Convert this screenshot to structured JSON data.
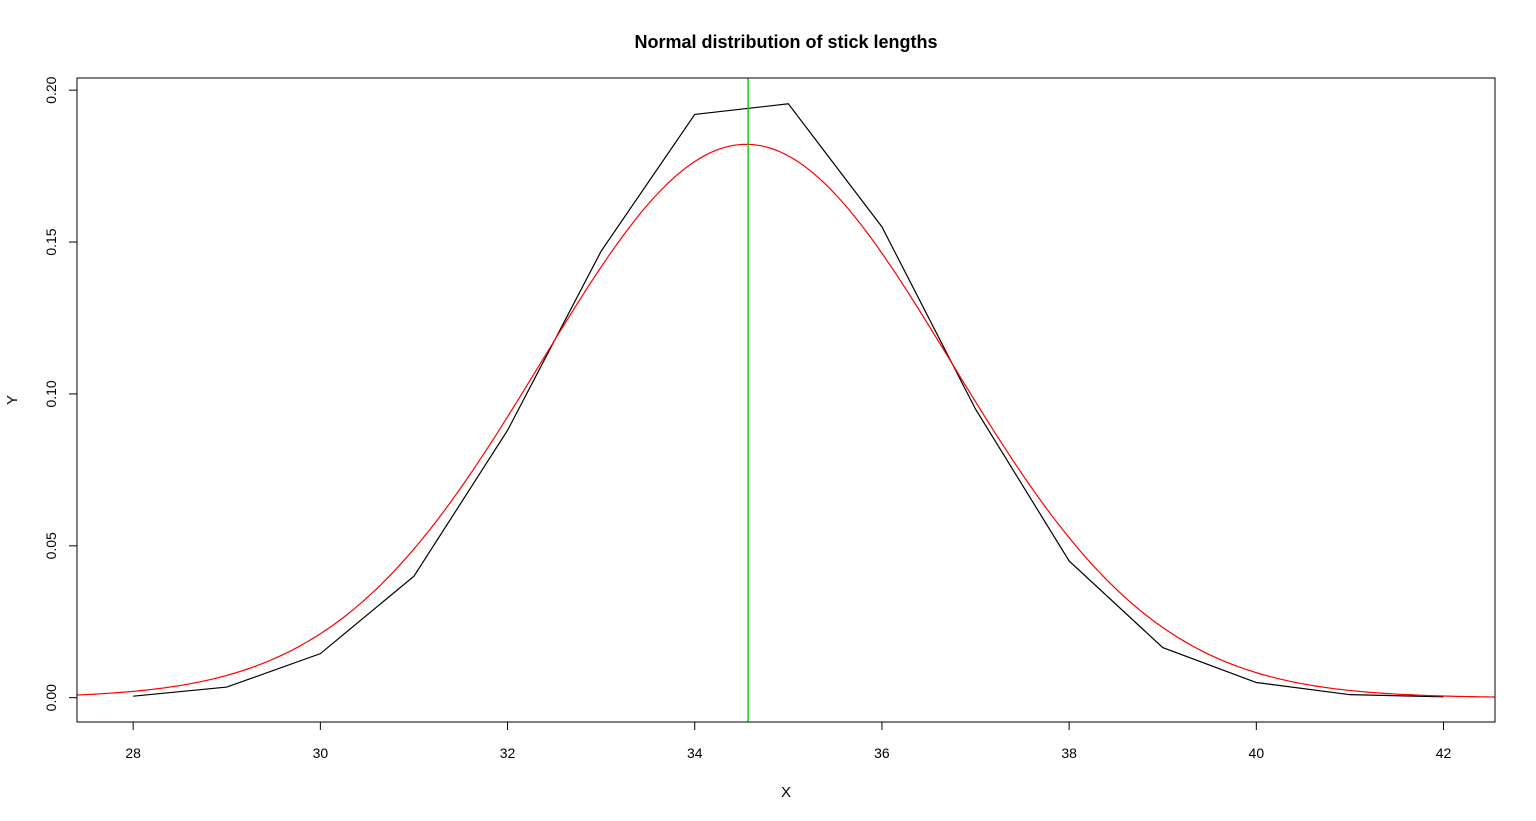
{
  "chart_data": {
    "type": "line",
    "title": "Normal distribution of stick lengths",
    "xlabel": "X",
    "ylabel": "Y",
    "xlim": [
      27.4,
      42.55
    ],
    "ylim": [
      -0.008,
      0.204
    ],
    "x_ticks": [
      28,
      30,
      32,
      34,
      36,
      38,
      40,
      42
    ],
    "x_tick_labels": [
      "28",
      "30",
      "32",
      "34",
      "36",
      "38",
      "40",
      "42"
    ],
    "y_ticks": [
      0.0,
      0.05,
      0.1,
      0.15,
      0.2
    ],
    "y_tick_labels": [
      "0.00",
      "0.05",
      "0.10",
      "0.15",
      "0.20"
    ],
    "grid": false,
    "series": [
      {
        "color": "#000000",
        "x": [
          28,
          29,
          30,
          31,
          32,
          33,
          34,
          35,
          36,
          37,
          38,
          39,
          40,
          41,
          42
        ],
        "y": [
          0.0005,
          0.0035,
          0.0145,
          0.04,
          0.088,
          0.147,
          0.192,
          0.1955,
          0.155,
          0.095,
          0.045,
          0.0165,
          0.005,
          0.001,
          0.0003
        ]
      },
      {
        "color": "#ff0000",
        "type": "normal-curve",
        "mean": 34.55,
        "sd": 2.19,
        "x_range": [
          27.4,
          42.55
        ]
      }
    ],
    "vlines": [
      {
        "x": 34.57,
        "color": "#00cc00"
      }
    ]
  }
}
